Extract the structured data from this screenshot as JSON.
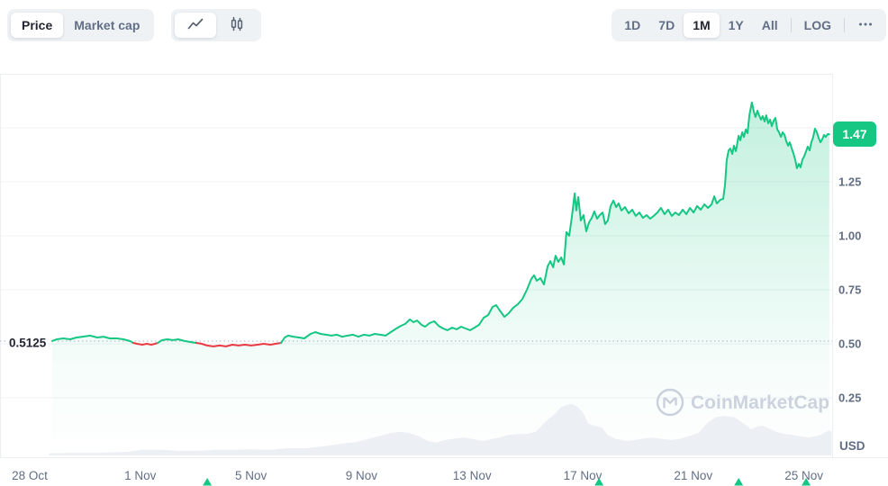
{
  "toolbar": {
    "metric_tabs": [
      {
        "label": "Price",
        "active": true
      },
      {
        "label": "Market cap",
        "active": false
      }
    ],
    "chart_type_tabs": [
      {
        "icon": "line-chart-icon",
        "active": true
      },
      {
        "icon": "candlestick-icon",
        "active": false
      }
    ],
    "range_tabs": [
      {
        "label": "1D",
        "active": false
      },
      {
        "label": "7D",
        "active": false
      },
      {
        "label": "1M",
        "active": true
      },
      {
        "label": "1Y",
        "active": false
      },
      {
        "label": "All",
        "active": false
      }
    ],
    "log_label": "LOG",
    "more_icon": "ellipsis-icon"
  },
  "chart": {
    "open_price_label": "0.5125",
    "current_price_label": "1.47",
    "unit_label": "USD",
    "watermark": "CoinMarketCap",
    "colors": {
      "up": "#16c784",
      "down": "#ea3943",
      "axis_text": "#616e85",
      "open_label_text": "#222531",
      "grid": "#f0f2f5",
      "border": "#eceff2",
      "dotted": "#a8b1c2",
      "volume": "#eceff4",
      "watermark": "#ccd3de",
      "badge_text": "#ffffff"
    }
  },
  "chart_data": {
    "type": "line",
    "title": "",
    "xlabel": "",
    "ylabel": "USD",
    "unit": "USD",
    "range_selected": "1M",
    "scale": "linear",
    "open_price": 0.5125,
    "current_price": 1.47,
    "ylim": [
      0,
      1.75
    ],
    "y_gridline_values": [
      0.25,
      0.5,
      0.75,
      1.0,
      1.25,
      1.5
    ],
    "y_tick_labels": [
      {
        "label": "1.25",
        "value": 1.25
      },
      {
        "label": "1.00",
        "value": 1.0
      },
      {
        "label": "0.75",
        "value": 0.75
      },
      {
        "label": "0.50",
        "value": 0.5
      },
      {
        "label": "0.25",
        "value": 0.25
      }
    ],
    "x_tick_labels": [
      {
        "label": "28 Oct",
        "day": 0
      },
      {
        "label": "1 Nov",
        "day": 4
      },
      {
        "label": "5 Nov",
        "day": 8
      },
      {
        "label": "9 Nov",
        "day": 12
      },
      {
        "label": "13 Nov",
        "day": 16
      },
      {
        "label": "17 Nov",
        "day": 20
      },
      {
        "label": "21 Nov",
        "day": 24
      },
      {
        "label": "25 Nov",
        "day": 28
      }
    ],
    "x_unit": "days since 28 Oct",
    "event_marker_days": [
      6.42,
      20.59,
      25.64,
      28.08
    ],
    "segments": [
      {
        "trend": "up",
        "points": [
          [
            0.81,
            0.513
          ],
          [
            0.98,
            0.521
          ],
          [
            1.21,
            0.525
          ],
          [
            1.47,
            0.521
          ],
          [
            1.69,
            0.529
          ],
          [
            1.92,
            0.533
          ],
          [
            2.18,
            0.538
          ],
          [
            2.44,
            0.529
          ],
          [
            2.67,
            0.533
          ],
          [
            2.9,
            0.525
          ],
          [
            3.16,
            0.525
          ],
          [
            3.39,
            0.521
          ],
          [
            3.62,
            0.513
          ],
          [
            3.75,
            0.504
          ]
        ]
      },
      {
        "trend": "down",
        "points": [
          [
            3.75,
            0.504
          ],
          [
            3.88,
            0.5
          ],
          [
            4.07,
            0.496
          ],
          [
            4.23,
            0.5
          ],
          [
            4.4,
            0.496
          ],
          [
            4.53,
            0.5
          ],
          [
            4.63,
            0.504
          ]
        ]
      },
      {
        "trend": "up",
        "points": [
          [
            4.63,
            0.504
          ],
          [
            4.79,
            0.517
          ],
          [
            4.98,
            0.521
          ],
          [
            5.18,
            0.517
          ],
          [
            5.37,
            0.521
          ],
          [
            5.6,
            0.513
          ],
          [
            5.83,
            0.508
          ],
          [
            6.03,
            0.504
          ]
        ]
      },
      {
        "trend": "down",
        "points": [
          [
            6.03,
            0.504
          ],
          [
            6.22,
            0.5
          ],
          [
            6.42,
            0.492
          ],
          [
            6.64,
            0.488
          ],
          [
            6.87,
            0.492
          ],
          [
            7.1,
            0.488
          ],
          [
            7.33,
            0.496
          ],
          [
            7.56,
            0.492
          ],
          [
            7.78,
            0.496
          ],
          [
            8.01,
            0.492
          ],
          [
            8.24,
            0.496
          ],
          [
            8.47,
            0.5
          ],
          [
            8.7,
            0.496
          ],
          [
            8.89,
            0.5
          ],
          [
            9.09,
            0.504
          ]
        ]
      },
      {
        "trend": "up",
        "points": [
          [
            9.09,
            0.504
          ],
          [
            9.22,
            0.529
          ],
          [
            9.35,
            0.538
          ],
          [
            9.54,
            0.533
          ],
          [
            9.74,
            0.529
          ],
          [
            9.93,
            0.525
          ],
          [
            10.16,
            0.546
          ],
          [
            10.33,
            0.554
          ],
          [
            10.52,
            0.546
          ],
          [
            10.72,
            0.542
          ],
          [
            10.91,
            0.538
          ],
          [
            11.11,
            0.542
          ],
          [
            11.3,
            0.533
          ],
          [
            11.5,
            0.538
          ],
          [
            11.69,
            0.542
          ],
          [
            11.89,
            0.533
          ],
          [
            12.08,
            0.542
          ],
          [
            12.28,
            0.538
          ],
          [
            12.48,
            0.546
          ],
          [
            12.67,
            0.542
          ],
          [
            12.87,
            0.538
          ],
          [
            13.06,
            0.554
          ],
          [
            13.26,
            0.571
          ],
          [
            13.42,
            0.583
          ],
          [
            13.58,
            0.592
          ],
          [
            13.75,
            0.613
          ],
          [
            13.88,
            0.6
          ],
          [
            14.01,
            0.608
          ],
          [
            14.17,
            0.588
          ],
          [
            14.3,
            0.579
          ],
          [
            14.46,
            0.596
          ],
          [
            14.63,
            0.604
          ],
          [
            14.79,
            0.583
          ],
          [
            14.95,
            0.571
          ],
          [
            15.11,
            0.563
          ],
          [
            15.28,
            0.575
          ],
          [
            15.44,
            0.567
          ],
          [
            15.6,
            0.579
          ],
          [
            15.77,
            0.571
          ],
          [
            15.93,
            0.563
          ],
          [
            16.09,
            0.575
          ],
          [
            16.25,
            0.588
          ],
          [
            16.42,
            0.621
          ],
          [
            16.58,
            0.633
          ],
          [
            16.74,
            0.671
          ],
          [
            16.87,
            0.679
          ],
          [
            17.0,
            0.654
          ],
          [
            17.17,
            0.625
          ],
          [
            17.33,
            0.642
          ],
          [
            17.49,
            0.667
          ],
          [
            17.65,
            0.683
          ],
          [
            17.82,
            0.708
          ],
          [
            17.98,
            0.75
          ],
          [
            18.14,
            0.8
          ],
          [
            18.24,
            0.817
          ],
          [
            18.34,
            0.792
          ],
          [
            18.47,
            0.804
          ],
          [
            18.6,
            0.775
          ],
          [
            18.73,
            0.858
          ],
          [
            18.83,
            0.883
          ],
          [
            18.93,
            0.854
          ],
          [
            19.02,
            0.908
          ],
          [
            19.12,
            0.879
          ],
          [
            19.22,
            0.9
          ],
          [
            19.32,
            0.867
          ],
          [
            19.41,
            1.017
          ],
          [
            19.51,
            1.0
          ],
          [
            19.61,
            1.088
          ],
          [
            19.71,
            1.196
          ],
          [
            19.77,
            1.117
          ],
          [
            19.84,
            1.179
          ],
          [
            19.93,
            1.071
          ],
          [
            20.03,
            1.096
          ],
          [
            20.13,
            1.021
          ],
          [
            20.23,
            1.063
          ],
          [
            20.33,
            1.083
          ],
          [
            20.42,
            1.113
          ],
          [
            20.52,
            1.079
          ],
          [
            20.62,
            1.096
          ],
          [
            20.72,
            1.108
          ],
          [
            20.81,
            1.054
          ],
          [
            20.91,
            1.071
          ],
          [
            21.01,
            1.138
          ],
          [
            21.11,
            1.163
          ],
          [
            21.21,
            1.133
          ],
          [
            21.3,
            1.15
          ],
          [
            21.4,
            1.117
          ],
          [
            21.53,
            1.133
          ],
          [
            21.66,
            1.104
          ],
          [
            21.79,
            1.121
          ],
          [
            21.92,
            1.092
          ],
          [
            22.05,
            1.108
          ],
          [
            22.18,
            1.083
          ],
          [
            22.31,
            1.096
          ],
          [
            22.44,
            1.079
          ],
          [
            22.57,
            1.092
          ],
          [
            22.7,
            1.108
          ],
          [
            22.83,
            1.129
          ],
          [
            22.96,
            1.1
          ],
          [
            23.09,
            1.121
          ],
          [
            23.22,
            1.092
          ],
          [
            23.35,
            1.108
          ],
          [
            23.48,
            1.096
          ],
          [
            23.62,
            1.121
          ],
          [
            23.75,
            1.1
          ],
          [
            23.88,
            1.129
          ],
          [
            24.01,
            1.108
          ],
          [
            24.14,
            1.138
          ],
          [
            24.27,
            1.121
          ],
          [
            24.4,
            1.146
          ],
          [
            24.53,
            1.129
          ],
          [
            24.66,
            1.146
          ],
          [
            24.76,
            1.183
          ],
          [
            24.85,
            1.15
          ],
          [
            24.98,
            1.167
          ],
          [
            25.08,
            1.171
          ],
          [
            25.15,
            1.238
          ],
          [
            25.21,
            1.35
          ],
          [
            25.28,
            1.396
          ],
          [
            25.34,
            1.404
          ],
          [
            25.41,
            1.379
          ],
          [
            25.47,
            1.417
          ],
          [
            25.54,
            1.392
          ],
          [
            25.64,
            1.463
          ],
          [
            25.7,
            1.442
          ],
          [
            25.77,
            1.479
          ],
          [
            25.83,
            1.458
          ],
          [
            25.9,
            1.492
          ],
          [
            25.96,
            1.475
          ],
          [
            26.03,
            1.558
          ],
          [
            26.09,
            1.6
          ],
          [
            26.12,
            1.617
          ],
          [
            26.19,
            1.575
          ],
          [
            26.25,
            1.55
          ],
          [
            26.32,
            1.579
          ],
          [
            26.38,
            1.558
          ],
          [
            26.45,
            1.538
          ],
          [
            26.51,
            1.554
          ],
          [
            26.58,
            1.529
          ],
          [
            26.64,
            1.558
          ],
          [
            26.71,
            1.521
          ],
          [
            26.78,
            1.538
          ],
          [
            26.84,
            1.508
          ],
          [
            26.91,
            1.533
          ],
          [
            26.97,
            1.546
          ],
          [
            27.04,
            1.492
          ],
          [
            27.1,
            1.479
          ],
          [
            27.17,
            1.458
          ],
          [
            27.23,
            1.479
          ],
          [
            27.3,
            1.467
          ],
          [
            27.36,
            1.438
          ],
          [
            27.43,
            1.417
          ],
          [
            27.49,
            1.433
          ],
          [
            27.56,
            1.404
          ],
          [
            27.62,
            1.383
          ],
          [
            27.69,
            1.35
          ],
          [
            27.75,
            1.313
          ],
          [
            27.82,
            1.333
          ],
          [
            27.88,
            1.317
          ],
          [
            27.95,
            1.354
          ],
          [
            28.01,
            1.367
          ],
          [
            28.08,
            1.392
          ],
          [
            28.14,
            1.413
          ],
          [
            28.21,
            1.396
          ],
          [
            28.27,
            1.433
          ],
          [
            28.34,
            1.458
          ],
          [
            28.4,
            1.496
          ],
          [
            28.47,
            1.479
          ],
          [
            28.53,
            1.454
          ],
          [
            28.6,
            1.433
          ],
          [
            28.66,
            1.446
          ],
          [
            28.73,
            1.467
          ],
          [
            28.79,
            1.458
          ],
          [
            28.86,
            1.471
          ],
          [
            28.92,
            1.47
          ]
        ]
      }
    ],
    "volume_relative": [
      [
        0.7,
        0.04
      ],
      [
        1.5,
        0.05
      ],
      [
        2.5,
        0.05
      ],
      [
        3.5,
        0.07
      ],
      [
        4.1,
        0.11
      ],
      [
        4.8,
        0.11
      ],
      [
        5.4,
        0.09
      ],
      [
        6.1,
        0.09
      ],
      [
        6.7,
        0.11
      ],
      [
        7.4,
        0.11
      ],
      [
        8.0,
        0.12
      ],
      [
        8.7,
        0.11
      ],
      [
        9.3,
        0.14
      ],
      [
        10.0,
        0.14
      ],
      [
        10.7,
        0.18
      ],
      [
        11.3,
        0.23
      ],
      [
        11.8,
        0.26
      ],
      [
        12.3,
        0.33
      ],
      [
        12.8,
        0.4
      ],
      [
        13.1,
        0.44
      ],
      [
        13.4,
        0.46
      ],
      [
        13.7,
        0.44
      ],
      [
        14.1,
        0.37
      ],
      [
        14.4,
        0.28
      ],
      [
        14.7,
        0.25
      ],
      [
        15.0,
        0.3
      ],
      [
        15.4,
        0.33
      ],
      [
        15.7,
        0.35
      ],
      [
        16.0,
        0.32
      ],
      [
        16.4,
        0.28
      ],
      [
        16.7,
        0.32
      ],
      [
        17.0,
        0.35
      ],
      [
        17.3,
        0.4
      ],
      [
        17.7,
        0.42
      ],
      [
        18.0,
        0.42
      ],
      [
        18.3,
        0.46
      ],
      [
        18.6,
        0.63
      ],
      [
        19.0,
        0.81
      ],
      [
        19.2,
        0.93
      ],
      [
        19.4,
        0.98
      ],
      [
        19.6,
        1.0
      ],
      [
        19.8,
        0.95
      ],
      [
        20.0,
        0.84
      ],
      [
        20.2,
        0.63
      ],
      [
        20.4,
        0.58
      ],
      [
        20.7,
        0.54
      ],
      [
        20.9,
        0.4
      ],
      [
        21.2,
        0.32
      ],
      [
        21.6,
        0.28
      ],
      [
        21.9,
        0.3
      ],
      [
        22.2,
        0.33
      ],
      [
        22.5,
        0.35
      ],
      [
        22.9,
        0.32
      ],
      [
        23.2,
        0.3
      ],
      [
        23.5,
        0.32
      ],
      [
        23.8,
        0.37
      ],
      [
        24.2,
        0.44
      ],
      [
        24.5,
        0.63
      ],
      [
        24.8,
        0.74
      ],
      [
        25.1,
        0.77
      ],
      [
        25.5,
        0.74
      ],
      [
        25.8,
        0.63
      ],
      [
        26.1,
        0.51
      ],
      [
        26.3,
        0.56
      ],
      [
        26.5,
        0.58
      ],
      [
        26.8,
        0.51
      ],
      [
        27.0,
        0.46
      ],
      [
        27.3,
        0.42
      ],
      [
        27.6,
        0.4
      ],
      [
        27.9,
        0.37
      ],
      [
        28.2,
        0.35
      ],
      [
        28.6,
        0.4
      ],
      [
        28.9,
        0.49
      ],
      [
        29.0,
        0.46
      ]
    ]
  }
}
